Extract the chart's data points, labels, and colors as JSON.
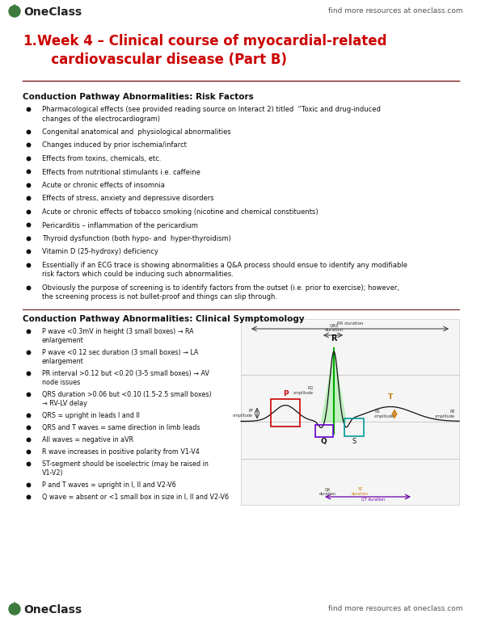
{
  "bg_color": "#ffffff",
  "header_text": "find more resources at oneclass.com",
  "oneclass_green": "#3d7a3d",
  "title_color": "#cc0000",
  "title_text": "Week 4 – Clinical course of myocardial-related\n   cardiovascular disease (Part B)",
  "section1_heading": "Conduction Pathway Abnormalities: Risk Factors",
  "section1_bullets": [
    "Pharmacological effects (see provided reading source on Interact 2) titled  “Toxic and drug-induced\nchanges of the electrocardiogram)",
    "Congenital anatomical and  physiological abnormalities",
    "Changes induced by prior ischemia/infarct",
    "Effects from toxins, chemicals, etc.",
    "Effects from nutritional stimulants i.e. caffeine",
    "Acute or chronic effects of insomnia",
    "Effects of stress, anxiety and depressive disorders",
    "Acute or chronic effects of tobacco smoking (nicotine and chemical constituents)",
    "Pericarditis – inflammation of the pericardium",
    "Thyroid dysfunction (both hypo- and  hyper-thyroidism)",
    "Vitamin D (25-hydroxy) deficiency",
    "Essentially if an ECG trace is showing abnormalities a Q&A process should ensue to identify any modifiable\nrisk factors which could be inducing such abnormalities.",
    "Obviously the purpose of screening is to identify factors from the outset (i.e. prior to exercise); however,\nthe screening process is not bullet-proof and things can slip through."
  ],
  "section2_heading": "Conduction Pathway Abnormalities: Clinical Symptomology",
  "section2_bullets": [
    "P wave <0.3mV in height (3 small boxes) → RA\nenlargement",
    "P wave <0.12 sec duration (3 small boxes) → LA\nenlargement",
    "PR interval >0.12 but <0.20 (3-5 small boxes) → AV\nnode issues",
    "QRS duration >0.06 but <0.10 (1.5-2.5 small boxes)\n→ RV-LV delay",
    "QRS = upright in leads I and II",
    "QRS and T waves = same direction in limb leads",
    "All waves = negative in aVR",
    "R wave increases in positive polarity from V1-V4",
    "ST-segment should be isoelectric (may be raised in\nV1-V2)",
    "P and T waves = upright in I, II and V2-V6",
    "Q wave = absent or <1 small box in size in I, II and V2-V6"
  ]
}
